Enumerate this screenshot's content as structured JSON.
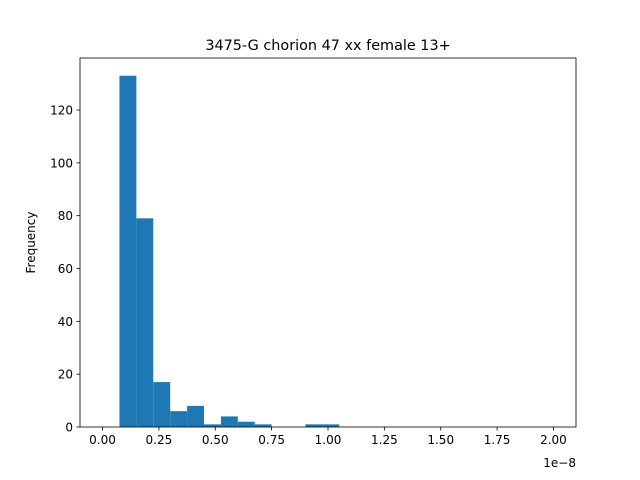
{
  "chart_data": {
    "type": "bar",
    "title": "3475-G chorion 47 xx female 13+",
    "xlabel": "",
    "ylabel": "Frequency",
    "x_offset_label": "1e−8",
    "x_scale_exponent": -8,
    "xlim": [
      -0.1,
      2.1
    ],
    "ylim": [
      0,
      139.7
    ],
    "x_ticks": [
      0.0,
      0.25,
      0.5,
      0.75,
      1.0,
      1.25,
      1.5,
      1.75,
      2.0
    ],
    "x_tick_labels": [
      "0.00",
      "0.25",
      "0.50",
      "0.75",
      "1.00",
      "1.25",
      "1.50",
      "1.75",
      "2.00"
    ],
    "y_ticks": [
      0,
      20,
      40,
      60,
      80,
      100,
      120
    ],
    "y_tick_labels": [
      "0",
      "20",
      "40",
      "60",
      "80",
      "100",
      "120"
    ],
    "grid": false,
    "color": "#1f77b4",
    "bin_edges": [
      0.0,
      0.075,
      0.15,
      0.225,
      0.3,
      0.375,
      0.45,
      0.525,
      0.6,
      0.675,
      0.75,
      0.825,
      0.9,
      0.975,
      1.05,
      1.125,
      1.2,
      1.275,
      1.35,
      1.425,
      1.5,
      1.575,
      1.65,
      1.725,
      1.8,
      1.875,
      1.95,
      2.0
    ],
    "counts": [
      0,
      133,
      79,
      17,
      6,
      8,
      1,
      4,
      2,
      1,
      0,
      0,
      1,
      1,
      0,
      0,
      0,
      0,
      0,
      0,
      0,
      0,
      0,
      0,
      0,
      0,
      0
    ]
  }
}
